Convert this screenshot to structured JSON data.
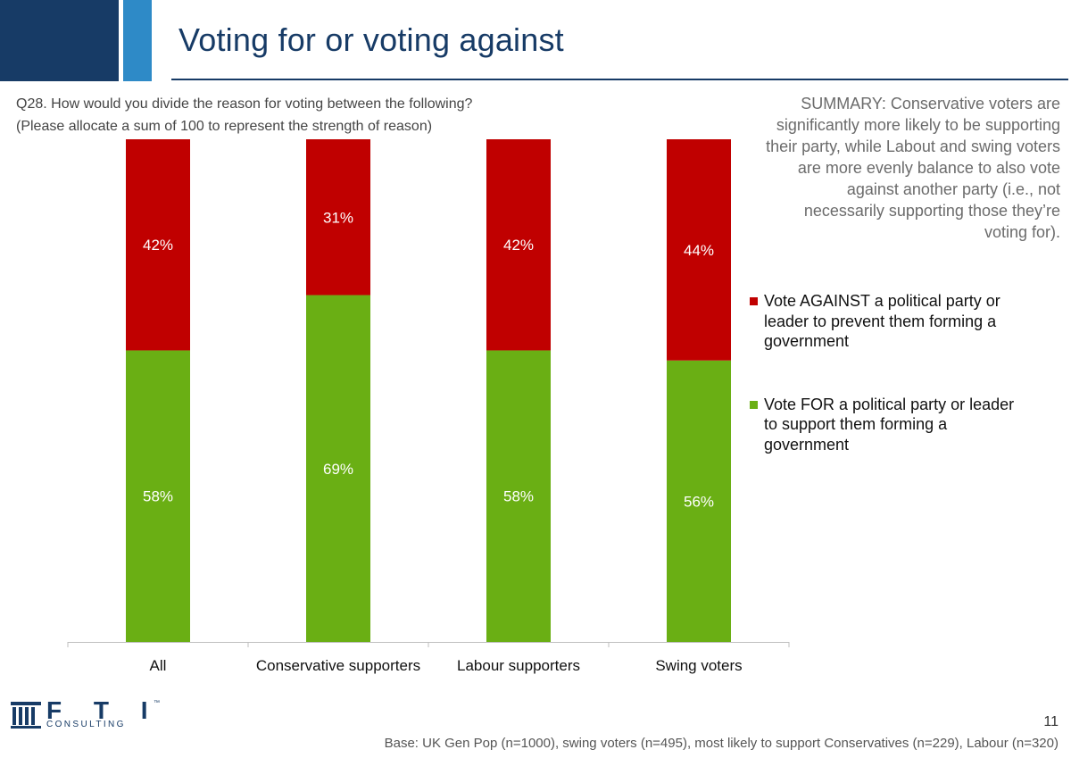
{
  "header": {
    "title": "Voting for or voting against"
  },
  "question": {
    "line1": "Q28. How would you divide the reason for voting between the following?",
    "line2": "(Please allocate a sum of 100 to represent the strength of reason)"
  },
  "summary": "SUMMARY: Conservative voters are significantly more likely to be supporting their party, while Labout and swing voters are more evenly balance to also vote against another party (i.e., not necessarily supporting those they’re voting for).",
  "legend": {
    "against": "Vote AGAINST a political party or leader to prevent them forming a government",
    "for": "Vote FOR a political party or leader to support them forming a government"
  },
  "colors": {
    "against": "#c00000",
    "for": "#6aaf14",
    "brand_dark": "#173b66",
    "brand_light": "#2e8ac7"
  },
  "chart_data": {
    "type": "bar",
    "stacked": true,
    "normalized_percent": true,
    "categories": [
      "All",
      "Conservative supporters",
      "Labour supporters",
      "Swing voters"
    ],
    "series": [
      {
        "name": "Vote FOR a political party or leader to support them forming a government",
        "values": [
          58,
          69,
          58,
          56
        ],
        "labels": [
          "58%",
          "69%",
          "58%",
          "56%"
        ],
        "color": "#6aaf14"
      },
      {
        "name": "Vote AGAINST a political party or leader to prevent them forming a government",
        "values": [
          42,
          31,
          42,
          44
        ],
        "labels": [
          "42%",
          "31%",
          "42%",
          "44%"
        ],
        "color": "#c00000"
      }
    ],
    "ylim": [
      0,
      100
    ],
    "grid": false,
    "legend_position": "right"
  },
  "logo": {
    "wordmark": "F T I",
    "sub": "CONSULTING",
    "tm": "™"
  },
  "footer": {
    "page_number": "11",
    "base_note": "Base: UK Gen Pop (n=1000), swing voters (n=495), most likely to support Conservatives (n=229), Labour (n=320)"
  }
}
